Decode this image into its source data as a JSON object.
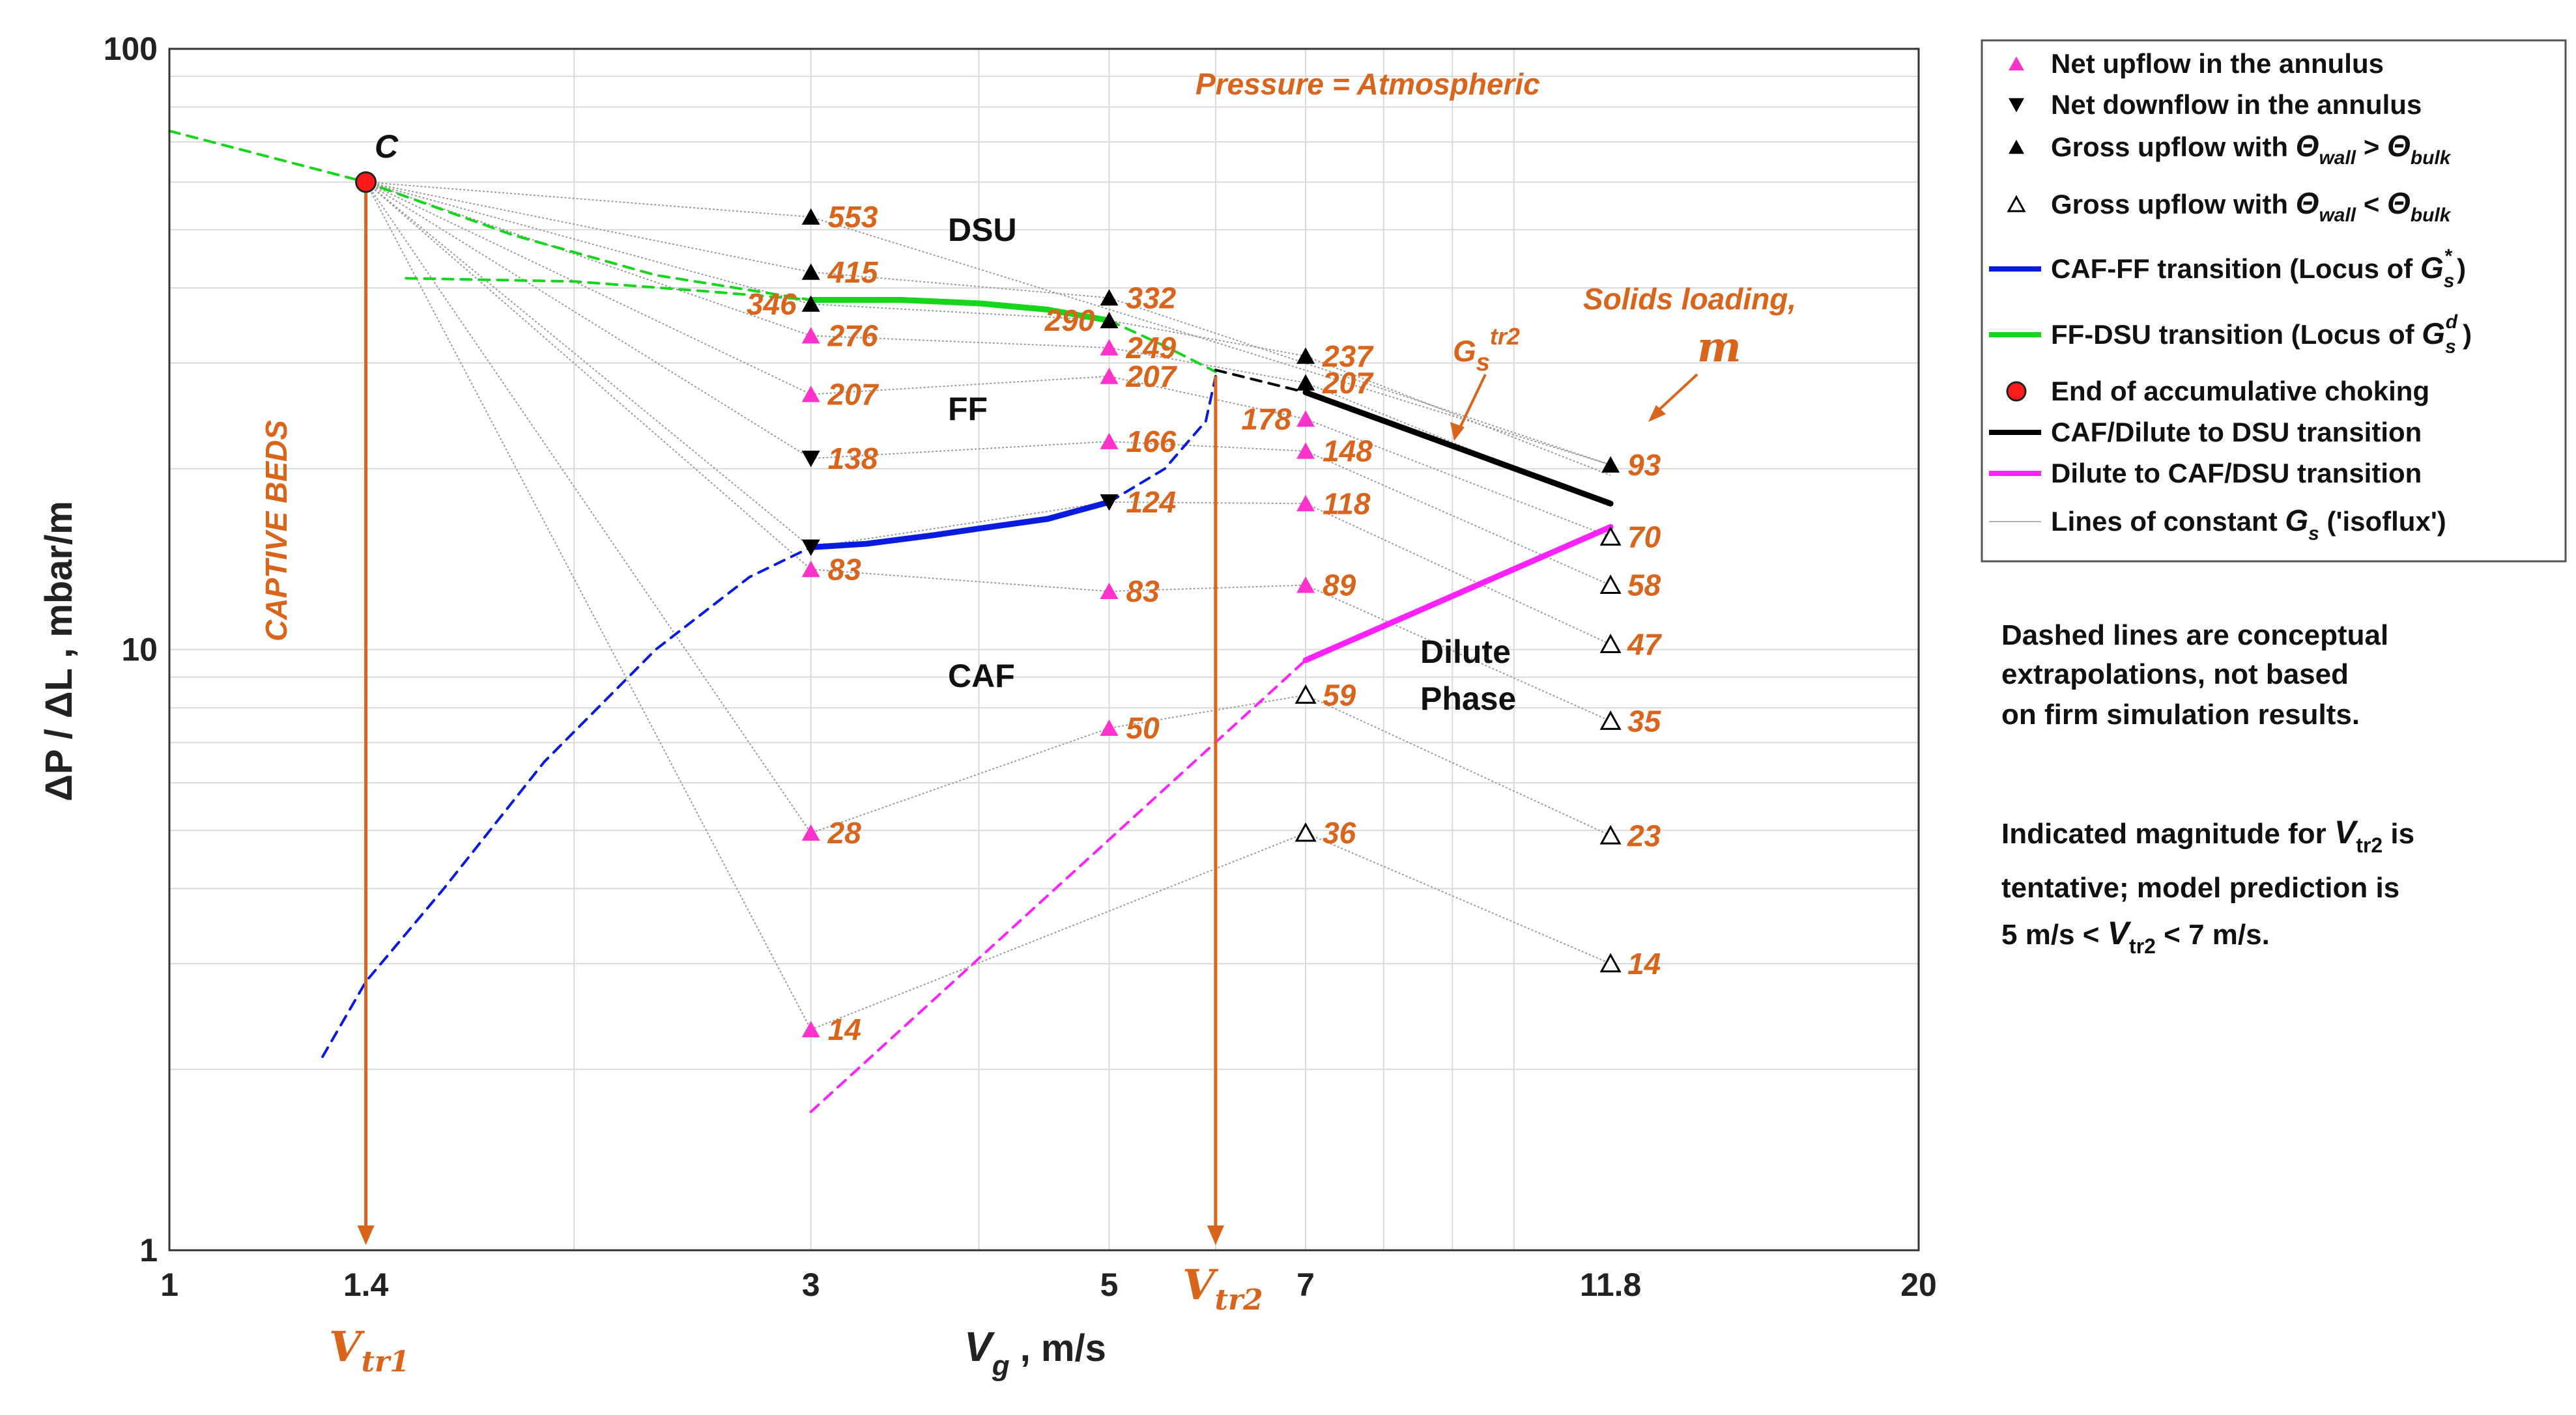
{
  "chart_data": {
    "type": "scatter",
    "xscale": "log",
    "yscale": "log",
    "xlim": [
      1,
      20
    ],
    "ylim": [
      1,
      100
    ],
    "xlabel": "V_g , m/s",
    "ylabel": "ΔP / ΔL ,  mbar/m",
    "x_ticks": [
      {
        "v": 1,
        "label": "1"
      },
      {
        "v": 1.4,
        "label": "1.4"
      },
      {
        "v": 3,
        "label": "3"
      },
      {
        "v": 5,
        "label": "5"
      },
      {
        "v": 7,
        "label": "7"
      },
      {
        "v": 11.8,
        "label": "11.8"
      },
      {
        "v": 20,
        "label": "20"
      }
    ],
    "y_ticks": [
      {
        "v": 1,
        "label": "1"
      },
      {
        "v": 10,
        "label": "10"
      },
      {
        "v": 100,
        "label": "100"
      }
    ],
    "colors": {
      "orange": "#d9641c",
      "upflow": "#ff33cc",
      "blue": "#0a1be0",
      "green": "#16d61b",
      "magenta": "#ff22ff",
      "black": "#000000",
      "point_c": "#ff1a1a",
      "grid": "#d9d9d9"
    },
    "annotations": {
      "pressure": "Pressure = Atmospheric",
      "solids_loading": "Solids loading,",
      "solids_loading_symbol": "m",
      "captive_beds": "CAPTIVE BEDS",
      "point_c": "C",
      "gs_tr2_base": "G",
      "gs_tr2_sub": "s",
      "gs_tr2_sup": "tr2",
      "vtr1_base": "V",
      "vtr1_sub": "tr1",
      "vtr2_base": "V",
      "vtr2_sub": "tr2"
    },
    "regions": {
      "dsu": "DSU",
      "ff": "FF",
      "caf": "CAF",
      "dilute_1": "Dilute",
      "dilute_2": "Phase"
    },
    "point_c": {
      "x": 1.4,
      "y": 60
    },
    "isoflux_lines": [
      [
        [
          1.4,
          60
        ],
        [
          3,
          52.5
        ],
        [
          11.8,
          20.3
        ]
      ],
      [
        [
          1.4,
          60
        ],
        [
          3,
          42.5
        ],
        [
          5,
          38.5
        ],
        [
          11.8,
          20.3
        ]
      ],
      [
        [
          1.4,
          60
        ],
        [
          3,
          37.6
        ],
        [
          5,
          35.3
        ],
        [
          7,
          30.8
        ],
        [
          11.8,
          19.5
        ]
      ],
      [
        [
          1.4,
          60
        ],
        [
          3,
          33.3
        ],
        [
          5,
          31.8
        ],
        [
          7,
          27.8
        ],
        [
          11.8,
          17.3
        ]
      ],
      [
        [
          1.4,
          60
        ],
        [
          3,
          26.6
        ],
        [
          5,
          28.5
        ],
        [
          7,
          24.2
        ],
        [
          11.8,
          15.4
        ]
      ],
      [
        [
          1.4,
          60
        ],
        [
          3,
          20.8
        ],
        [
          5,
          22.2
        ],
        [
          7,
          21.4
        ],
        [
          11.8,
          12.8
        ]
      ],
      [
        [
          1.4,
          60
        ],
        [
          3,
          14.8
        ],
        [
          5,
          17.6
        ],
        [
          7,
          17.5
        ],
        [
          11.8,
          10.2
        ]
      ],
      [
        [
          1.4,
          60
        ],
        [
          3,
          13.6
        ],
        [
          5,
          12.5
        ],
        [
          7,
          12.8
        ],
        [
          11.8,
          7.6
        ]
      ],
      [
        [
          1.4,
          60
        ],
        [
          3,
          4.95
        ],
        [
          5,
          7.4
        ],
        [
          7,
          8.4
        ],
        [
          11.8,
          4.9
        ]
      ],
      [
        [
          1.4,
          60
        ],
        [
          3,
          2.33
        ],
        [
          7,
          4.95
        ],
        [
          11.8,
          3.0
        ]
      ]
    ],
    "series": [
      {
        "name": "Net upflow in the annulus",
        "marker": "triangle-up-magenta",
        "points": [
          {
            "x": 3,
            "y": 33.3
          },
          {
            "x": 3,
            "y": 26.6
          },
          {
            "x": 3,
            "y": 13.6
          },
          {
            "x": 3,
            "y": 4.95
          },
          {
            "x": 3,
            "y": 2.33
          },
          {
            "x": 5,
            "y": 31.8
          },
          {
            "x": 5,
            "y": 28.5
          },
          {
            "x": 5,
            "y": 22.2
          },
          {
            "x": 5,
            "y": 12.5
          },
          {
            "x": 5,
            "y": 7.4
          },
          {
            "x": 7,
            "y": 24.2
          },
          {
            "x": 7,
            "y": 21.4
          },
          {
            "x": 7,
            "y": 17.5
          },
          {
            "x": 7,
            "y": 12.8
          }
        ]
      },
      {
        "name": "Net downflow in the annulus",
        "marker": "triangle-down-black",
        "points": [
          {
            "x": 3,
            "y": 20.8
          },
          {
            "x": 3,
            "y": 14.8
          },
          {
            "x": 5,
            "y": 17.6
          }
        ]
      },
      {
        "name": "Gross upflow with Θwall > Θbulk",
        "marker": "triangle-up-black",
        "points": [
          {
            "x": 3,
            "y": 52.5
          },
          {
            "x": 3,
            "y": 42.5
          },
          {
            "x": 3,
            "y": 37.6
          },
          {
            "x": 5,
            "y": 38.5
          },
          {
            "x": 5,
            "y": 35.3
          },
          {
            "x": 7,
            "y": 30.8
          },
          {
            "x": 7,
            "y": 27.8
          },
          {
            "x": 11.8,
            "y": 20.3
          }
        ]
      },
      {
        "name": "Gross upflow with Θwall < Θbulk",
        "marker": "triangle-up-open",
        "points": [
          {
            "x": 7,
            "y": 8.4
          },
          {
            "x": 7,
            "y": 4.95
          },
          {
            "x": 11.8,
            "y": 15.4
          },
          {
            "x": 11.8,
            "y": 12.8
          },
          {
            "x": 11.8,
            "y": 10.2
          },
          {
            "x": 11.8,
            "y": 7.6
          },
          {
            "x": 11.8,
            "y": 4.9
          },
          {
            "x": 11.8,
            "y": 3.0
          }
        ]
      }
    ],
    "point_labels": [
      {
        "x": 3,
        "y": 52.5,
        "text": "553"
      },
      {
        "x": 3,
        "y": 42.5,
        "text": "415"
      },
      {
        "x": 3,
        "y": 37.6,
        "text": "346",
        "side": "left"
      },
      {
        "x": 3,
        "y": 33.3,
        "text": "276"
      },
      {
        "x": 3,
        "y": 26.6,
        "text": "207"
      },
      {
        "x": 3,
        "y": 20.8,
        "text": "138"
      },
      {
        "x": 3,
        "y": 13.6,
        "text": "83"
      },
      {
        "x": 3,
        "y": 4.95,
        "text": "28"
      },
      {
        "x": 3,
        "y": 2.33,
        "text": "14"
      },
      {
        "x": 5,
        "y": 38.5,
        "text": "332"
      },
      {
        "x": 5,
        "y": 35.3,
        "text": "290",
        "side": "left"
      },
      {
        "x": 5,
        "y": 31.8,
        "text": "249"
      },
      {
        "x": 5,
        "y": 28.5,
        "text": "207"
      },
      {
        "x": 5,
        "y": 22.2,
        "text": "166"
      },
      {
        "x": 5,
        "y": 17.6,
        "text": "124"
      },
      {
        "x": 5,
        "y": 12.5,
        "text": "83"
      },
      {
        "x": 5,
        "y": 7.4,
        "text": "50"
      },
      {
        "x": 7,
        "y": 30.8,
        "text": "237"
      },
      {
        "x": 7,
        "y": 27.8,
        "text": "207"
      },
      {
        "x": 7,
        "y": 24.2,
        "text": "178",
        "side": "left"
      },
      {
        "x": 7,
        "y": 21.4,
        "text": "148"
      },
      {
        "x": 7,
        "y": 17.5,
        "text": "118"
      },
      {
        "x": 7,
        "y": 12.8,
        "text": "89"
      },
      {
        "x": 7,
        "y": 8.4,
        "text": "59"
      },
      {
        "x": 7,
        "y": 4.95,
        "text": "36"
      },
      {
        "x": 11.8,
        "y": 20.3,
        "text": "93"
      },
      {
        "x": 11.8,
        "y": 15.4,
        "text": "70"
      },
      {
        "x": 11.8,
        "y": 12.8,
        "text": "58"
      },
      {
        "x": 11.8,
        "y": 10.2,
        "text": "47"
      },
      {
        "x": 11.8,
        "y": 7.6,
        "text": "35"
      },
      {
        "x": 11.8,
        "y": 4.9,
        "text": "23"
      },
      {
        "x": 11.8,
        "y": 3.0,
        "text": "14"
      }
    ],
    "transition_lines": [
      {
        "name": "CAF-FF transition (Locus of Gs*)",
        "color": "blue",
        "style": "solid",
        "points": [
          [
            3,
            14.8
          ],
          [
            3.3,
            15.0
          ],
          [
            3.7,
            15.5
          ],
          [
            4.0,
            15.9
          ],
          [
            4.5,
            16.5
          ],
          [
            5,
            17.6
          ]
        ]
      },
      {
        "name": "CAF-FF transition extrapolation",
        "color": "blue",
        "style": "dashed",
        "points": [
          [
            1.3,
            2.1
          ],
          [
            1.4,
            2.8
          ],
          [
            1.6,
            4.0
          ],
          [
            1.9,
            6.5
          ],
          [
            2.3,
            10
          ],
          [
            2.7,
            13.2
          ],
          [
            3,
            14.8
          ]
        ]
      },
      {
        "name": "CAF-FF transition extrapolation (upper)",
        "color": "blue",
        "style": "dashed",
        "points": [
          [
            5,
            17.6
          ],
          [
            5.5,
            20
          ],
          [
            5.9,
            24
          ],
          [
            6.0,
            28.5
          ]
        ]
      },
      {
        "name": "FF-DSU transition (Locus of Gsd)",
        "color": "green",
        "style": "solid",
        "points": [
          [
            3,
            38.2
          ],
          [
            3.5,
            38.2
          ],
          [
            4.0,
            37.7
          ],
          [
            4.5,
            36.8
          ],
          [
            5,
            35.3
          ]
        ]
      },
      {
        "name": "FF-DSU transition extrapolation",
        "color": "green",
        "style": "dashed",
        "points": [
          [
            1,
            73
          ],
          [
            1.4,
            60
          ],
          [
            1.8,
            49
          ],
          [
            2.3,
            42
          ],
          [
            3,
            38.2
          ]
        ]
      },
      {
        "name": "FF-DSU transition extrapolation (flat)",
        "color": "green",
        "style": "dashed",
        "points": [
          [
            1.5,
            41.5
          ],
          [
            2.0,
            41.0
          ],
          [
            2.5,
            39.5
          ],
          [
            3,
            38.2
          ]
        ]
      },
      {
        "name": "FF-DSU transition extrapolation (right)",
        "color": "green",
        "style": "dashed",
        "points": [
          [
            5,
            35.3
          ],
          [
            5.5,
            32
          ],
          [
            6.0,
            29
          ]
        ]
      },
      {
        "name": "CAF/Dilute to DSU transition extrapolation",
        "color": "black",
        "style": "dashed",
        "points": [
          [
            6.0,
            29.2
          ],
          [
            7,
            26.8
          ]
        ]
      },
      {
        "name": "CAF/Dilute to DSU transition",
        "color": "black",
        "style": "solid",
        "points": [
          [
            7,
            26.8
          ],
          [
            11.8,
            17.5
          ]
        ]
      },
      {
        "name": "Dilute to CAF/DSU transition",
        "color": "magenta",
        "style": "solid",
        "points": [
          [
            7,
            9.6
          ],
          [
            11.8,
            16.0
          ]
        ]
      },
      {
        "name": "Dilute to CAF/DSU transition extrapolation",
        "color": "magenta",
        "style": "dashed",
        "points": [
          [
            3,
            1.7
          ],
          [
            7,
            9.6
          ]
        ]
      }
    ],
    "vertical_markers": [
      {
        "x": 1.4,
        "color": "orange",
        "from_y": 60,
        "to_y": 1
      },
      {
        "x": 6.0,
        "color": "orange",
        "from_y": 28.5,
        "to_y": 1
      }
    ],
    "legend": {
      "placement": "right",
      "items": [
        {
          "text": "Net upflow in the annulus",
          "marker": "triangle-up-magenta"
        },
        {
          "text": "Net downflow in the annulus",
          "marker": "triangle-down-black"
        },
        {
          "text": "Gross upflow with ",
          "theta1": "Θ",
          "sub1": "wall",
          "op": " > ",
          "theta2": "Θ",
          "sub2": "bulk",
          "marker": "triangle-up-black"
        },
        {
          "text": "Gross upflow with ",
          "theta1": "Θ",
          "sub1": "wall",
          "op": " < ",
          "theta2": "Θ",
          "sub2": "bulk",
          "marker": "triangle-up-open"
        },
        {
          "text": "CAF-FF transition (Locus of ",
          "g": "G",
          "sub": "s",
          "sup": "*",
          "tail": ")",
          "marker": "line-blue"
        },
        {
          "text": "FF-DSU transition (Locus of ",
          "g": "G",
          "sub": "s",
          "sup": "d",
          "tail": ")",
          "marker": "line-green"
        },
        {
          "text": "End of accumulative choking",
          "marker": "circle-red"
        },
        {
          "text": "CAF/Dilute to DSU transition",
          "marker": "line-black"
        },
        {
          "text": "Dilute to CAF/DSU transition",
          "marker": "line-magenta"
        },
        {
          "text": "Lines of constant ",
          "g": "G",
          "sub": "s",
          "tail": " ('isoflux')",
          "marker": "line-gray"
        }
      ]
    },
    "notes": {
      "dashed_1": "Dashed lines are conceptual",
      "dashed_2": "extrapolations, not based",
      "dashed_3": "on firm simulation results.",
      "vtr2_1a": "Indicated magnitude for ",
      "vtr2_1b": "V",
      "vtr2_1c": "tr2",
      "vtr2_1d": " is",
      "vtr2_2": "tentative; model prediction is",
      "vtr2_3a": "5 m/s < ",
      "vtr2_3b": "V",
      "vtr2_3c": "tr2",
      "vtr2_3d": " < 7 m/s."
    }
  }
}
